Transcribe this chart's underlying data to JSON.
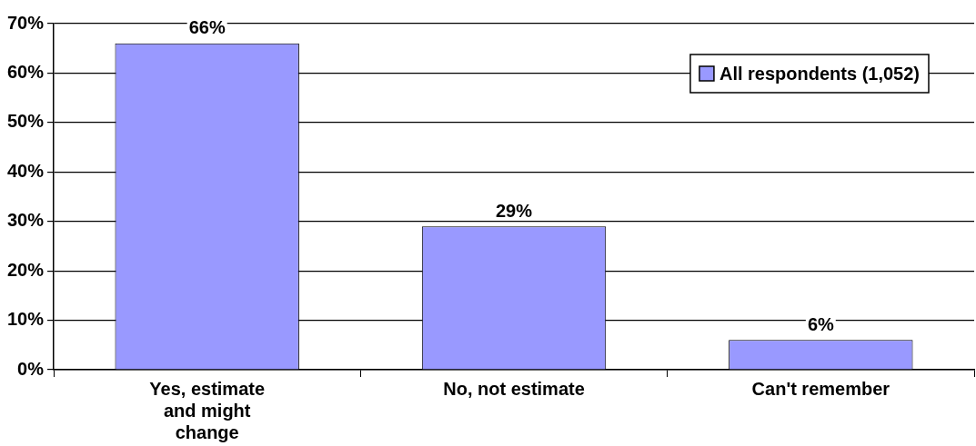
{
  "chart_data": {
    "type": "bar",
    "categories": [
      "Yes, estimate and might change",
      "No, not estimate",
      "Can't remember"
    ],
    "series": [
      {
        "name": "All respondents (1,052)",
        "color": "#9999ff",
        "values": [
          66,
          29,
          6
        ],
        "value_labels": [
          "66%",
          "29%",
          "6%"
        ]
      }
    ],
    "ylim": [
      0,
      70
    ],
    "yticks": [
      {
        "value": 0,
        "label": "0%"
      },
      {
        "value": 10,
        "label": "10%"
      },
      {
        "value": 20,
        "label": "20%"
      },
      {
        "value": 30,
        "label": "30%"
      },
      {
        "value": 40,
        "label": "40%"
      },
      {
        "value": 50,
        "label": "50%"
      },
      {
        "value": 60,
        "label": "60%"
      },
      {
        "value": 70,
        "label": "70%"
      }
    ],
    "grid": "y",
    "legend": "top right"
  }
}
